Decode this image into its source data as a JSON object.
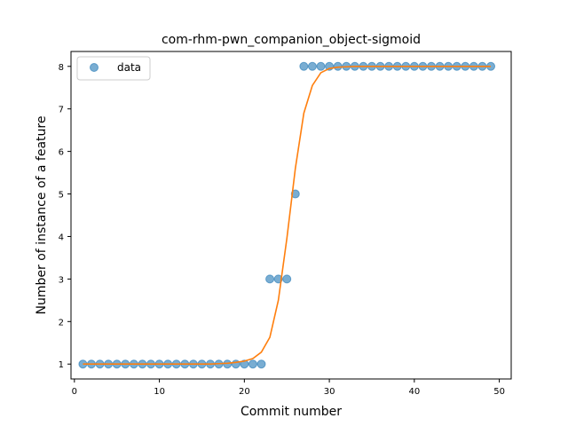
{
  "chart_data": {
    "type": "scatter",
    "title": "com-rhm-pwn_companion_object-sigmoid",
    "xlabel": "Commit number",
    "ylabel": "Number of instance of a feature",
    "xlim": [
      -0.4,
      51.4
    ],
    "ylim": [
      0.65,
      8.35
    ],
    "xticks": [
      0,
      10,
      20,
      30,
      40,
      50
    ],
    "yticks": [
      1,
      2,
      3,
      4,
      5,
      6,
      7,
      8
    ],
    "grid": false,
    "legend_position": "upper-left",
    "series": [
      {
        "name": "data",
        "kind": "points",
        "color": "#1f77b4",
        "x": [
          1,
          2,
          3,
          4,
          5,
          6,
          7,
          8,
          9,
          10,
          11,
          12,
          13,
          14,
          15,
          16,
          17,
          18,
          19,
          20,
          21,
          22,
          23,
          24,
          25,
          26,
          27,
          28,
          29,
          30,
          31,
          32,
          33,
          34,
          35,
          36,
          37,
          38,
          39,
          40,
          41,
          42,
          43,
          44,
          45,
          46,
          47,
          48,
          49
        ],
        "y": [
          1,
          1,
          1,
          1,
          1,
          1,
          1,
          1,
          1,
          1,
          1,
          1,
          1,
          1,
          1,
          1,
          1,
          1,
          1,
          1,
          1,
          1,
          3,
          3,
          3,
          5,
          8,
          8,
          8,
          8,
          8,
          8,
          8,
          8,
          8,
          8,
          8,
          8,
          8,
          8,
          8,
          8,
          8,
          8,
          8,
          8,
          8,
          8,
          8
        ]
      },
      {
        "kind": "line",
        "color": "#ff7f0e",
        "x": [
          1,
          2,
          3,
          4,
          5,
          6,
          7,
          8,
          9,
          10,
          11,
          12,
          13,
          14,
          15,
          16,
          17,
          18,
          19,
          20,
          21,
          22,
          23,
          24,
          25,
          26,
          27,
          28,
          29,
          30,
          31,
          32,
          33,
          34,
          35,
          36,
          37,
          38,
          39,
          40,
          41,
          42,
          43,
          44,
          45,
          46,
          47,
          48,
          49
        ],
        "y": [
          1,
          1,
          1,
          1,
          1,
          1,
          1,
          1,
          1,
          1,
          1,
          1,
          1,
          1,
          1,
          1,
          1.01,
          1.02,
          1.04,
          1.07,
          1.13,
          1.28,
          1.63,
          2.5,
          3.95,
          5.6,
          6.9,
          7.55,
          7.85,
          7.95,
          7.98,
          7.99,
          8,
          8,
          8,
          8,
          8,
          8,
          8,
          8,
          8,
          8,
          8,
          8,
          8,
          8,
          8,
          8,
          8
        ]
      }
    ]
  }
}
